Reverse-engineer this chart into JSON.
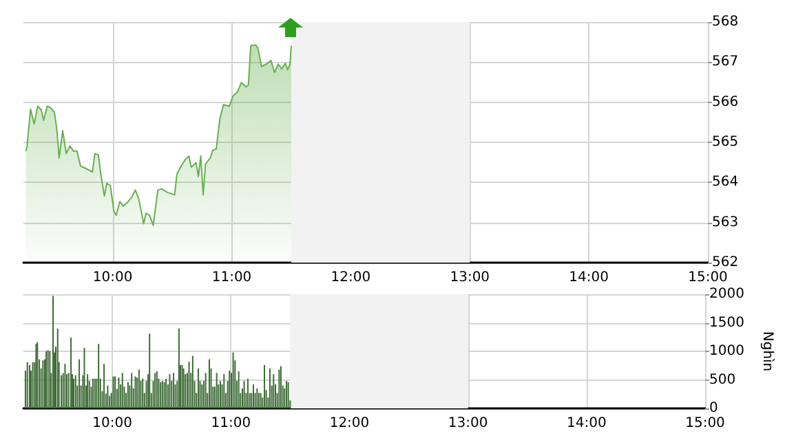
{
  "chart_data": [
    {
      "type": "area",
      "xlim": [
        9.25,
        15
      ],
      "ylim": [
        562,
        568
      ],
      "xticks": [
        {
          "value": 10,
          "label": "10:00"
        },
        {
          "value": 11,
          "label": "11:00"
        },
        {
          "value": 12,
          "label": "12:00"
        },
        {
          "value": 13,
          "label": "13:00"
        },
        {
          "value": 14,
          "label": "14:00"
        },
        {
          "value": 15,
          "label": "15:00"
        }
      ],
      "yticks": [
        562,
        563,
        564,
        565,
        566,
        567,
        568
      ],
      "grid": true,
      "bands": [
        {
          "axis": "x",
          "from": 11.5,
          "to": 13,
          "color": "#f2f2f2"
        }
      ],
      "series": [
        {
          "color": "#66b050",
          "x": [
            9.27,
            9.28,
            9.31,
            9.34,
            9.37,
            9.4,
            9.42,
            9.45,
            9.48,
            9.51,
            9.53,
            9.55,
            9.58,
            9.61,
            9.64,
            9.67,
            9.7,
            9.73,
            9.78,
            9.83,
            9.85,
            9.88,
            9.9,
            9.93,
            9.95,
            9.98,
            10.01,
            10.03,
            10.06,
            10.09,
            10.13,
            10.16,
            10.19,
            10.22,
            10.26,
            10.28,
            10.31,
            10.34,
            10.38,
            10.41,
            10.46,
            10.52,
            10.54,
            10.58,
            10.61,
            10.64,
            10.66,
            10.7,
            10.72,
            10.74,
            10.76,
            10.78,
            10.82,
            10.84,
            10.87,
            10.9,
            10.93,
            10.98,
            11.01,
            11.05,
            11.08,
            11.12,
            11.14,
            11.16,
            11.2,
            11.22,
            11.25,
            11.29,
            11.33,
            11.36,
            11.39,
            11.42,
            11.45,
            11.47,
            11.49,
            11.5
          ],
          "values": [
            564.78,
            564.89,
            565.83,
            565.46,
            565.9,
            565.81,
            565.55,
            565.9,
            565.86,
            565.75,
            565.35,
            564.61,
            565.29,
            564.72,
            564.91,
            564.78,
            564.78,
            564.41,
            564.34,
            564.26,
            564.72,
            564.69,
            564.21,
            563.66,
            563.98,
            563.92,
            563.29,
            563.18,
            563.52,
            563.41,
            563.52,
            563.63,
            563.81,
            563.58,
            562.97,
            563.23,
            563.18,
            562.93,
            563.81,
            563.84,
            563.75,
            563.69,
            564.21,
            564.43,
            564.57,
            564.66,
            564.38,
            564.49,
            564.15,
            564.66,
            563.69,
            564.46,
            564.61,
            564.8,
            564.83,
            565.58,
            565.94,
            565.9,
            566.15,
            566.26,
            566.49,
            566.38,
            566.43,
            567.41,
            567.43,
            567.35,
            566.89,
            566.95,
            567.04,
            566.74,
            566.95,
            566.83,
            566.97,
            566.81,
            566.95,
            567.41
          ]
        }
      ]
    },
    {
      "type": "bar",
      "ylabel": "Nghìn",
      "xlim": [
        9.25,
        15
      ],
      "ylim": [
        0,
        2000
      ],
      "xticks": [
        {
          "value": 10,
          "label": "10:00"
        },
        {
          "value": 11,
          "label": "11:00"
        },
        {
          "value": 12,
          "label": "12:00"
        },
        {
          "value": 13,
          "label": "13:00"
        },
        {
          "value": 14,
          "label": "14:00"
        },
        {
          "value": 15,
          "label": "15:00"
        }
      ],
      "yticks": [
        0,
        500,
        1000,
        1500,
        2000
      ],
      "grid": true,
      "bands": [
        {
          "axis": "x",
          "from": 11.5,
          "to": 13,
          "color": "#f2f2f2"
        }
      ],
      "series": [
        {
          "color": "#3d6b35",
          "x": [
            9.267,
            9.283,
            9.302,
            9.314,
            9.329,
            9.345,
            9.357,
            9.368,
            9.384,
            9.399,
            9.415,
            9.43,
            9.442,
            9.457,
            9.473,
            9.484,
            9.5,
            9.512,
            9.523,
            9.539,
            9.55,
            9.57,
            9.585,
            9.601,
            9.616,
            9.632,
            9.651,
            9.663,
            9.674,
            9.69,
            9.705,
            9.721,
            9.736,
            9.752,
            9.764,
            9.779,
            9.791,
            9.806,
            9.822,
            9.837,
            9.853,
            9.868,
            9.884,
            9.899,
            9.915,
            9.93,
            9.946,
            9.961,
            9.977,
            9.992,
            10.008,
            10.023,
            10.039,
            10.054,
            10.07,
            10.085,
            10.101,
            10.116,
            10.132,
            10.147,
            10.163,
            10.178,
            10.194,
            10.209,
            10.225,
            10.24,
            10.256,
            10.271,
            10.287,
            10.302,
            10.314,
            10.329,
            10.345,
            10.36,
            10.376,
            10.391,
            10.407,
            10.422,
            10.438,
            10.453,
            10.469,
            10.484,
            10.5,
            10.516,
            10.531,
            10.547,
            10.562,
            10.574,
            10.589,
            10.601,
            10.616,
            10.632,
            10.647,
            10.663,
            10.678,
            10.694,
            10.709,
            10.725,
            10.74,
            10.756,
            10.771,
            10.787,
            10.802,
            10.818,
            10.833,
            10.849,
            10.864,
            10.88,
            10.895,
            10.911,
            10.926,
            10.942,
            10.957,
            10.973,
            10.988,
            11.004,
            11.019,
            11.035,
            11.05,
            11.066,
            11.081,
            11.097,
            11.112,
            11.128,
            11.143,
            11.159,
            11.174,
            11.19,
            11.205,
            11.221,
            11.236,
            11.252,
            11.267,
            11.283,
            11.298,
            11.314,
            11.329,
            11.345,
            11.36,
            11.376,
            11.391,
            11.407,
            11.422,
            11.438,
            11.453,
            11.469,
            11.484,
            11.5
          ],
          "values": [
            660,
            810,
            760,
            660,
            810,
            810,
            1130,
            1160,
            860,
            700,
            840,
            860,
            1000,
            1020,
            1000,
            620,
            1970,
            980,
            1080,
            1400,
            810,
            580,
            620,
            780,
            600,
            620,
            1240,
            600,
            520,
            580,
            400,
            860,
            400,
            580,
            1060,
            400,
            600,
            480,
            380,
            520,
            520,
            520,
            1130,
            520,
            300,
            780,
            260,
            400,
            220,
            270,
            560,
            560,
            340,
            540,
            420,
            620,
            380,
            270,
            460,
            400,
            620,
            350,
            560,
            540,
            680,
            480,
            520,
            270,
            480,
            600,
            1310,
            270,
            480,
            620,
            650,
            520,
            460,
            480,
            460,
            520,
            420,
            600,
            480,
            620,
            420,
            480,
            1400,
            760,
            760,
            700,
            600,
            620,
            820,
            620,
            920,
            480,
            270,
            700,
            480,
            420,
            480,
            620,
            270,
            860,
            700,
            380,
            380,
            620,
            420,
            480,
            420,
            600,
            270,
            480,
            660,
            620,
            980,
            840,
            480,
            650,
            270,
            350,
            480,
            270,
            520,
            270,
            270,
            420,
            270,
            350,
            270,
            270,
            190,
            760,
            320,
            190,
            700,
            400,
            600,
            420,
            270,
            680,
            740,
            400,
            350,
            480,
            460,
            140
          ]
        }
      ]
    }
  ]
}
